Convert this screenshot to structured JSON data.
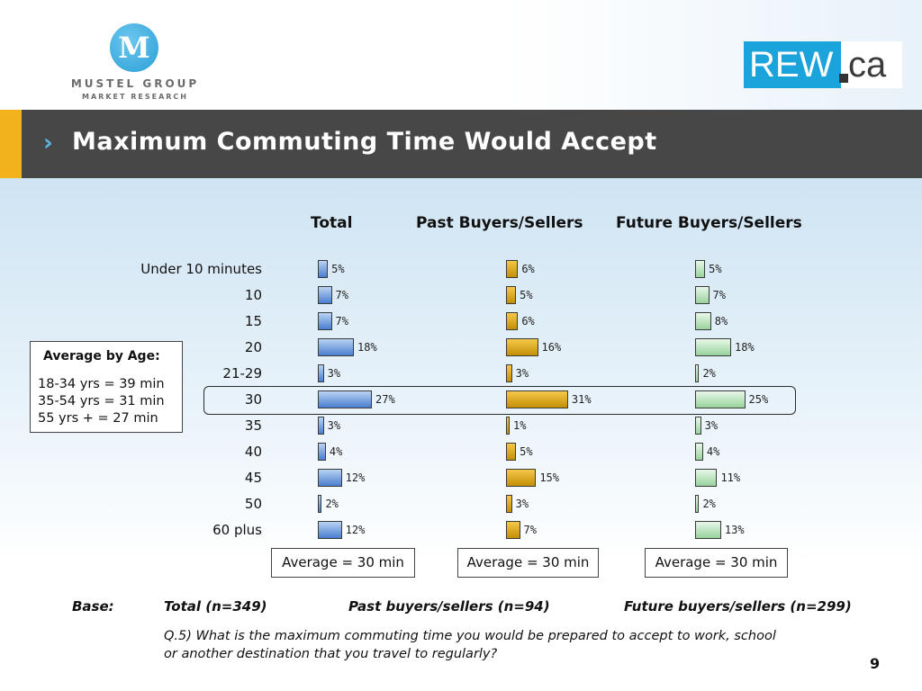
{
  "header": {
    "logo_left": {
      "mark": "M",
      "name_line1": "MUSTEL GROUP",
      "name_line2": "MARKET RESEARCH"
    },
    "logo_right": {
      "part1": "REW",
      "part2": "ca"
    },
    "title": "Maximum Commuting Time Would Accept"
  },
  "chart_data": {
    "type": "bar",
    "orientation": "horizontal",
    "categories": [
      "Under 10 minutes",
      "10",
      "15",
      "20",
      "21-29",
      "30",
      "35",
      "40",
      "45",
      "50",
      "60 plus"
    ],
    "series": [
      {
        "name": "Total",
        "color": "#4a7ed0",
        "values": [
          5,
          7,
          7,
          18,
          3,
          27,
          3,
          4,
          12,
          2,
          12
        ]
      },
      {
        "name": "Past Buyers/Sellers",
        "color": "#d99a0a",
        "values": [
          6,
          5,
          6,
          16,
          3,
          31,
          1,
          5,
          15,
          3,
          7
        ]
      },
      {
        "name": "Future Buyers/Sellers",
        "color": "#98d29c",
        "values": [
          5,
          7,
          8,
          18,
          2,
          25,
          3,
          4,
          11,
          2,
          13
        ]
      }
    ],
    "value_suffix": "%",
    "highlighted_category": "30",
    "averages": [
      "Average = 30 min",
      "Average = 30 min",
      "Average = 30 min"
    ]
  },
  "age_box": {
    "title": "Average by Age:",
    "lines": [
      "18-34 yrs = 39 min",
      "35-54 yrs = 31 min",
      "55 yrs +  = 27 min"
    ]
  },
  "footer": {
    "base_label": "Base:",
    "base_total": "Total (n=349)",
    "base_past": "Past buyers/sellers (n=94)",
    "base_future": "Future buyers/sellers (n=299)",
    "question_line1": "Q.5) What is the maximum commuting time you would be prepared to accept to work, school",
    "question_line2": "or another destination that you travel to regularly?",
    "page_number": "9"
  }
}
